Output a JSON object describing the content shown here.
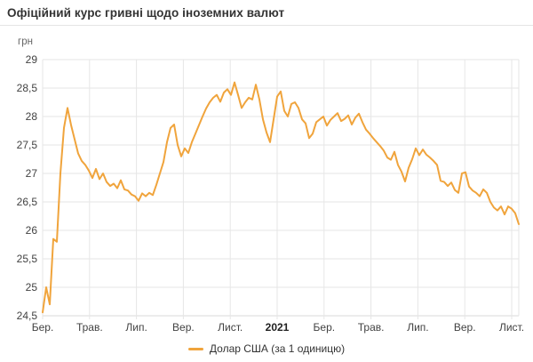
{
  "chart_data": {
    "type": "line",
    "title": "Офіційний курс гривні щодо іноземних валют",
    "ylabel": "грн",
    "ylim": [
      24.5,
      29
    ],
    "grid": true,
    "legend_position": "bottom",
    "y_tick_labels": [
      "29",
      "28,5",
      "28",
      "27,5",
      "27",
      "26,5",
      "26",
      "25,5",
      "25",
      "24,5"
    ],
    "y_tick_values": [
      29,
      28.5,
      28,
      27.5,
      27,
      26.5,
      26,
      25.5,
      25,
      24.5
    ],
    "x_tick_labels": [
      "Бер.",
      "Трав.",
      "Лип.",
      "Вер.",
      "Лист.",
      "2021",
      "Бер.",
      "Трав.",
      "Лип.",
      "Вер.",
      "Лист."
    ],
    "x_bold_tick": "2021",
    "colors": {
      "line": "#F0A43C",
      "grid": "#e6e6e6",
      "axis": "#d8d8d8",
      "tick_text": "#424242",
      "bold_tick_text": "#212121"
    },
    "series": [
      {
        "name": "Долар США (за 1 одиницю)",
        "color": "#F0A43C",
        "values": [
          24.56,
          25.0,
          24.7,
          25.85,
          25.8,
          27.0,
          27.8,
          28.15,
          27.85,
          27.6,
          27.35,
          27.22,
          27.15,
          27.05,
          26.92,
          27.08,
          26.9,
          27.0,
          26.85,
          26.78,
          26.82,
          26.74,
          26.88,
          26.72,
          26.7,
          26.63,
          26.6,
          26.52,
          26.65,
          26.6,
          26.66,
          26.62,
          26.8,
          27.0,
          27.2,
          27.55,
          27.8,
          27.86,
          27.5,
          27.3,
          27.44,
          27.36,
          27.55,
          27.7,
          27.85,
          28.0,
          28.14,
          28.25,
          28.33,
          28.38,
          28.26,
          28.42,
          28.48,
          28.38,
          28.6,
          28.38,
          28.15,
          28.25,
          28.33,
          28.3,
          28.56,
          28.3,
          27.95,
          27.72,
          27.55,
          27.95,
          28.35,
          28.44,
          28.1,
          28.0,
          28.22,
          28.25,
          28.15,
          27.95,
          27.88,
          27.62,
          27.7,
          27.9,
          27.95,
          28.0,
          27.84,
          27.94,
          28.0,
          28.06,
          27.92,
          27.96,
          28.02,
          27.86,
          27.98,
          28.05,
          27.9,
          27.77,
          27.7,
          27.62,
          27.55,
          27.48,
          27.4,
          27.28,
          27.24,
          27.38,
          27.15,
          27.03,
          26.86,
          27.1,
          27.25,
          27.44,
          27.32,
          27.42,
          27.33,
          27.28,
          27.22,
          27.15,
          26.87,
          26.85,
          26.78,
          26.84,
          26.71,
          26.66,
          27.0,
          27.02,
          26.77,
          26.7,
          26.66,
          26.6,
          26.72,
          26.66,
          26.5,
          26.4,
          26.35,
          26.42,
          26.28,
          26.42,
          26.38,
          26.3,
          26.11
        ]
      }
    ]
  }
}
